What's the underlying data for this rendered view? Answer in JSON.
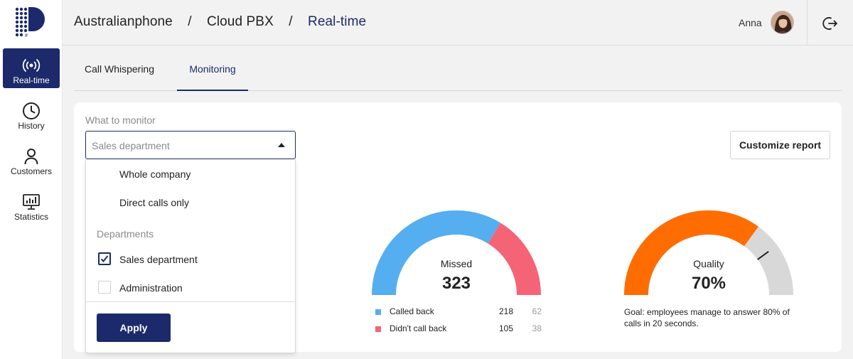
{
  "header": {
    "breadcrumb": [
      "Australianphone",
      "Cloud PBX",
      "Real-time"
    ],
    "separator": "/",
    "user_name": "Anna"
  },
  "sidebar": {
    "items": [
      {
        "label": "Real-time",
        "icon": "broadcast-icon",
        "active": true
      },
      {
        "label": "History",
        "icon": "clock-icon",
        "active": false
      },
      {
        "label": "Customers",
        "icon": "person-icon",
        "active": false
      },
      {
        "label": "Statistics",
        "icon": "chart-monitor-icon",
        "active": false
      }
    ]
  },
  "tabs": [
    {
      "label": "Call Whispering",
      "active": false
    },
    {
      "label": "Monitoring",
      "active": true
    }
  ],
  "monitor": {
    "label": "What to monitor",
    "selected_value": "Sales department",
    "customize_label": "Customize report",
    "dropdown": {
      "options": [
        "Whole company",
        "Direct calls only"
      ],
      "section_title": "Departments",
      "departments": [
        {
          "label": "Sales department",
          "checked": true
        },
        {
          "label": "Administration",
          "checked": false
        }
      ],
      "apply_label": "Apply"
    }
  },
  "gauges": {
    "missed": {
      "title": "Missed",
      "value": "323",
      "legend": [
        {
          "label": "Called back",
          "count": "218",
          "secondary": "62",
          "color": "#54aef0"
        },
        {
          "label": "Didn't call back",
          "count": "105",
          "secondary": "38",
          "color": "#f56476"
        }
      ]
    },
    "quality": {
      "title": "Quality",
      "value": "70%",
      "fraction": 0.7,
      "goal_marker": 0.8,
      "color": "#ff6d00",
      "track_color": "#d8d8d8",
      "goal_text": "Goal: employees manage to answer 80% of calls in 20 seconds."
    }
  },
  "colors": {
    "primary": "#1c2a6b",
    "called_back": "#54aef0",
    "not_called_back": "#f56476",
    "quality": "#ff6d00"
  }
}
